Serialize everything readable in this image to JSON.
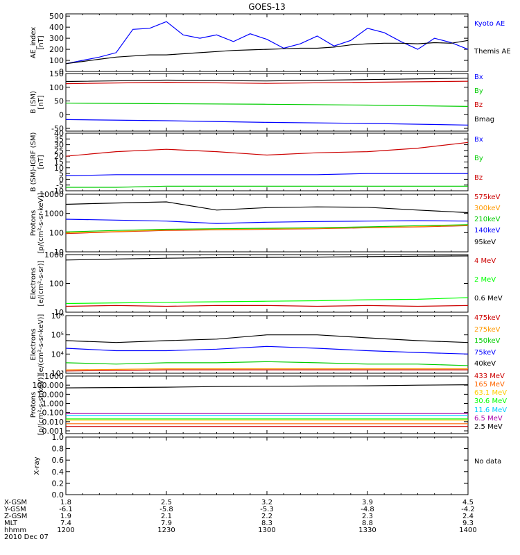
{
  "title": "GOES-13",
  "chart_data": [
    {
      "type": "line",
      "ylabel": "AE_index\n[nT]",
      "ylim": [
        0,
        520
      ],
      "yticks": [
        "0",
        "100",
        "200",
        "300",
        "400",
        "500"
      ],
      "x": [
        1200,
        1205,
        1210,
        1215,
        1220,
        1225,
        1230,
        1235,
        1240,
        1245,
        1250,
        1255,
        1300,
        1305,
        1310,
        1315,
        1320,
        1325,
        1330,
        1335,
        1340,
        1345,
        1350,
        1355,
        1400
      ],
      "series": [
        {
          "name": "Kyoto AE",
          "color": "#0000ff",
          "values": [
            70,
            100,
            130,
            170,
            380,
            390,
            450,
            330,
            300,
            330,
            270,
            340,
            290,
            210,
            250,
            320,
            230,
            280,
            390,
            350,
            270,
            200,
            300,
            260,
            200
          ]
        },
        {
          "name": "Themis AE",
          "color": "#000000",
          "values": [
            70,
            90,
            110,
            130,
            140,
            150,
            150,
            160,
            170,
            180,
            190,
            195,
            200,
            205,
            210,
            210,
            220,
            240,
            250,
            255,
            255,
            250,
            260,
            255,
            280
          ]
        }
      ]
    },
    {
      "type": "line",
      "ylabel": "B (SM)\n[nT]",
      "ylim": [
        -60,
        150
      ],
      "yticks": [
        "-50",
        "0",
        "50",
        "100",
        "150"
      ],
      "x": [
        1200,
        1230,
        1300,
        1330,
        1400
      ],
      "series": [
        {
          "name": "Bx",
          "color": "#0000ff",
          "values": [
            -18,
            -22,
            -28,
            -32,
            -38
          ]
        },
        {
          "name": "By",
          "color": "#00cc00",
          "values": [
            42,
            40,
            38,
            35,
            30
          ]
        },
        {
          "name": "Bz",
          "color": "#cc0000",
          "values": [
            113,
            118,
            114,
            118,
            122
          ]
        },
        {
          "name": "Bmag",
          "color": "#000000",
          "values": [
            121,
            126,
            123,
            128,
            133
          ]
        }
      ]
    },
    {
      "type": "line",
      "ylabel": "B (SM)-IGRF (SM)\n[nT]",
      "ylim": [
        -10,
        40
      ],
      "yticks": [
        "-10",
        "-5",
        "0",
        "5",
        "10",
        "15",
        "20",
        "25",
        "30",
        "35",
        "40"
      ],
      "x": [
        1200,
        1215,
        1230,
        1245,
        1300,
        1315,
        1330,
        1345,
        1400
      ],
      "series": [
        {
          "name": "Bx",
          "color": "#0000ff",
          "values": [
            3,
            4,
            4,
            4,
            4,
            4,
            5,
            5,
            5
          ]
        },
        {
          "name": "By",
          "color": "#00cc00",
          "values": [
            -7,
            -7,
            -6,
            -6,
            -6,
            -6,
            -6,
            -6,
            -6
          ]
        },
        {
          "name": "Bz",
          "color": "#cc0000",
          "values": [
            20,
            24,
            26,
            24,
            21,
            23,
            24,
            27,
            32
          ]
        }
      ]
    },
    {
      "type": "line",
      "ylabel": "Protons\n[p/(cm²-s-sr-keV)]",
      "yscale": "log",
      "ylim": [
        10,
        10000
      ],
      "yticks": [
        "10",
        "100",
        "1000",
        "10000"
      ],
      "x": [
        1200,
        1215,
        1230,
        1245,
        1300,
        1315,
        1330,
        1345,
        1400
      ],
      "series": [
        {
          "name": "575keV",
          "color": "#cc0000",
          "values": [
            90,
            110,
            130,
            140,
            150,
            160,
            180,
            200,
            230
          ]
        },
        {
          "name": "300keV",
          "color": "#ff9900",
          "values": [
            95,
            115,
            135,
            145,
            155,
            165,
            185,
            205,
            240
          ]
        },
        {
          "name": "210keV",
          "color": "#00cc00",
          "values": [
            110,
            130,
            150,
            160,
            170,
            180,
            200,
            230,
            260
          ]
        },
        {
          "name": "140keV",
          "color": "#0000ff",
          "values": [
            500,
            450,
            400,
            300,
            350,
            380,
            400,
            420,
            400
          ]
        },
        {
          "name": "95keV",
          "color": "#000000",
          "values": [
            3000,
            3500,
            4000,
            1500,
            2000,
            2200,
            2100,
            1500,
            1100
          ]
        }
      ]
    },
    {
      "type": "line",
      "ylabel": "Electrons\n[e/(cm²-s-sr)]",
      "yscale": "log",
      "ylim": [
        10,
        1000
      ],
      "yticks": [
        "10",
        "100",
        "1000"
      ],
      "x": [
        1200,
        1215,
        1230,
        1245,
        1300,
        1315,
        1330,
        1345,
        1400
      ],
      "series": [
        {
          "name": "4 MeV",
          "color": "#cc0000",
          "values": [
            16,
            17,
            16,
            17,
            17,
            16,
            17,
            16,
            17
          ]
        },
        {
          "name": "2 MeV",
          "color": "#00ff00",
          "values": [
            20,
            21,
            22,
            23,
            24,
            25,
            27,
            28,
            32
          ]
        },
        {
          "name": "0.6 MeV",
          "color": "#000000",
          "values": [
            650,
            700,
            750,
            780,
            800,
            820,
            850,
            880,
            900
          ]
        }
      ]
    },
    {
      "type": "line",
      "ylabel": "Electrons\n[e/(cm²-s-sr-keV)]",
      "yscale": "log",
      "ylim": [
        1000,
        1000000
      ],
      "yticks": [
        "10³",
        "10⁴",
        "10⁵",
        "10⁶"
      ],
      "x": [
        1200,
        1215,
        1230,
        1245,
        1300,
        1315,
        1330,
        1345,
        1400
      ],
      "series": [
        {
          "name": "475keV",
          "color": "#cc0000",
          "values": [
            1300,
            1400,
            1500,
            1500,
            1500,
            1500,
            1500,
            1500,
            1500
          ]
        },
        {
          "name": "275keV",
          "color": "#ff9900",
          "values": [
            1500,
            1600,
            1700,
            1700,
            1700,
            1700,
            1700,
            1700,
            1700
          ]
        },
        {
          "name": "150keV",
          "color": "#00cc00",
          "values": [
            3500,
            3000,
            3500,
            3500,
            4000,
            3500,
            3000,
            3000,
            2500
          ]
        },
        {
          "name": "75keV",
          "color": "#0000ff",
          "values": [
            20000,
            15000,
            15000,
            18000,
            25000,
            20000,
            15000,
            12000,
            10000
          ]
        },
        {
          "name": "40keV",
          "color": "#000000",
          "values": [
            50000,
            40000,
            50000,
            60000,
            100000,
            100000,
            70000,
            50000,
            40000
          ]
        }
      ]
    },
    {
      "type": "line",
      "ylabel": "Protons\n[p/(cm²-s-sr-keV)]",
      "yscale": "log",
      "ylim": [
        0.0005,
        1000
      ],
      "yticks": [
        "0.001",
        "0.010",
        "0.100",
        "1.000",
        "10.000",
        "100.000",
        "1000"
      ],
      "x": [
        1200,
        1215,
        1230,
        1245,
        1300,
        1315,
        1330,
        1345,
        1400
      ],
      "series": [
        {
          "name": "433 MeV",
          "color": "#cc0000",
          "values": [
            0.003,
            0.003,
            0.003,
            0.003,
            0.003,
            0.003,
            0.003,
            0.003,
            0.003
          ]
        },
        {
          "name": "165 MeV",
          "color": "#ff6600",
          "values": [
            0.006,
            0.006,
            0.006,
            0.006,
            0.006,
            0.006,
            0.006,
            0.006,
            0.006
          ]
        },
        {
          "name": "63.1 MeV",
          "color": "#ffcc00",
          "values": [
            0.015,
            0.015,
            0.015,
            0.015,
            0.015,
            0.015,
            0.015,
            0.015,
            0.015
          ]
        },
        {
          "name": "30.6 MeV",
          "color": "#00ff00",
          "values": [
            0.02,
            0.02,
            0.02,
            0.02,
            0.02,
            0.02,
            0.02,
            0.02,
            0.02
          ]
        },
        {
          "name": "11.6 MeV",
          "color": "#00ccff",
          "values": [
            0.05,
            0.05,
            0.05,
            0.05,
            0.05,
            0.05,
            0.05,
            0.05,
            0.05
          ]
        },
        {
          "name": "6.5 MeV",
          "color": "#aa00aa",
          "values": [
            0.08,
            0.08,
            0.08,
            0.08,
            0.08,
            0.08,
            0.08,
            0.08,
            0.08
          ]
        },
        {
          "name": "2.5 MeV",
          "color": "#000000",
          "values": [
            50,
            55,
            60,
            70,
            75,
            80,
            85,
            100,
            110
          ]
        }
      ]
    },
    {
      "type": "line",
      "ylabel": "X-ray",
      "ylim": [
        0,
        1
      ],
      "yticks": [
        "0.0",
        "0.2",
        "0.4",
        "0.6",
        "0.8",
        "1.0"
      ],
      "x": [],
      "series": [],
      "note": "No data"
    }
  ],
  "orbit_table": {
    "rows": [
      {
        "label": "X-GSM",
        "values": [
          "1.8",
          "2.5",
          "3.2",
          "3.9",
          "4.5"
        ]
      },
      {
        "label": "Y-GSM",
        "values": [
          "-6.1",
          "-5.8",
          "-5.3",
          "-4.8",
          "-4.2"
        ]
      },
      {
        "label": "Z-GSM",
        "values": [
          "1.9",
          "2.1",
          "2.2",
          "2.3",
          "2.4"
        ]
      },
      {
        "label": "MLT",
        "values": [
          "7.4",
          "7.9",
          "8.3",
          "8.8",
          "9.3"
        ]
      },
      {
        "label": "hhmm",
        "values": [
          "1200",
          "1230",
          "1300",
          "1330",
          "1400"
        ]
      }
    ],
    "date": "2010 Dec 07"
  }
}
